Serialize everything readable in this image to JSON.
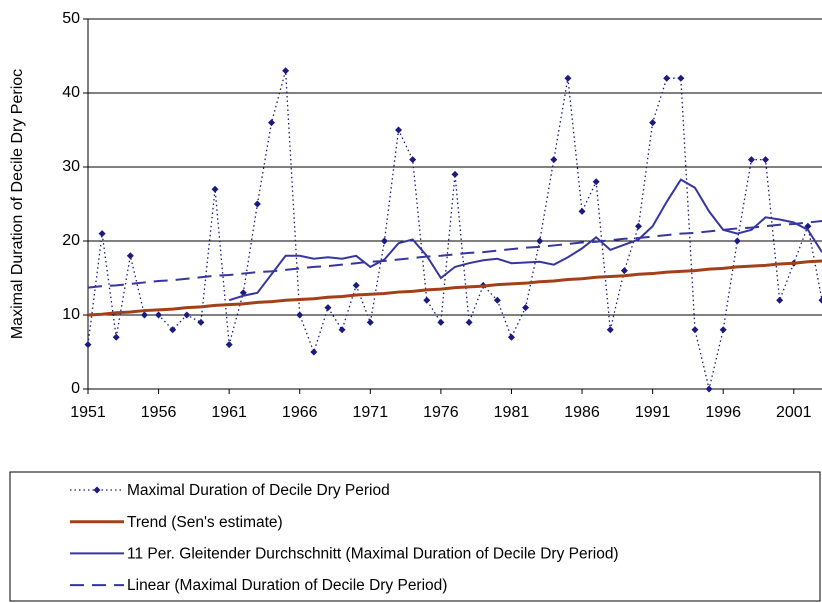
{
  "chart_data": {
    "type": "line",
    "y_label": "Maximal Duration of Decile Dry Perioc",
    "x": [
      1951,
      1952,
      1953,
      1954,
      1955,
      1956,
      1957,
      1958,
      1959,
      1960,
      1961,
      1962,
      1963,
      1964,
      1965,
      1966,
      1967,
      1968,
      1969,
      1970,
      1971,
      1972,
      1973,
      1974,
      1975,
      1976,
      1977,
      1978,
      1979,
      1980,
      1981,
      1982,
      1983,
      1984,
      1985,
      1986,
      1987,
      1988,
      1989,
      1990,
      1991,
      1992,
      1993,
      1994,
      1995,
      1996,
      1997,
      1998,
      1999,
      2000,
      2001,
      2002,
      2003
    ],
    "xlim": [
      1951,
      2003
    ],
    "xticks": [
      1951,
      1956,
      1961,
      1966,
      1971,
      1976,
      1981,
      1986,
      1991,
      1996,
      2001
    ],
    "ylim": [
      0,
      50
    ],
    "yticks": [
      0,
      10,
      20,
      30,
      40,
      50
    ],
    "grid": true,
    "legend": "bottom",
    "series": [
      {
        "name": "Maximal Duration of Decile Dry Period",
        "color": "#1a1a80",
        "line_style": "dotted",
        "marker": "diamond",
        "values": [
          6,
          21,
          7,
          18,
          10,
          10,
          8,
          10,
          9,
          27,
          6,
          13,
          25,
          36,
          43,
          10,
          5,
          11,
          8,
          14,
          9,
          20,
          35,
          31,
          12,
          9,
          29,
          9,
          14,
          12,
          7,
          11,
          20,
          31,
          42,
          24,
          28,
          8,
          16,
          22,
          36,
          42,
          42,
          8,
          0,
          8,
          20,
          31,
          31,
          12,
          17,
          22,
          12
        ]
      },
      {
        "name": "Trend (Sen's estimate)",
        "color": "#a3401a",
        "line_style": "solid",
        "width": 3,
        "values": [
          10.0,
          10.1,
          10.3,
          10.4,
          10.6,
          10.7,
          10.8,
          11.0,
          11.1,
          11.3,
          11.4,
          11.5,
          11.7,
          11.8,
          12.0,
          12.1,
          12.2,
          12.4,
          12.5,
          12.7,
          12.8,
          12.9,
          13.1,
          13.2,
          13.4,
          13.5,
          13.7,
          13.8,
          13.9,
          14.1,
          14.2,
          14.3,
          14.5,
          14.6,
          14.8,
          14.9,
          15.1,
          15.2,
          15.3,
          15.5,
          15.6,
          15.8,
          15.9,
          16.0,
          16.2,
          16.3,
          16.5,
          16.6,
          16.7,
          16.9,
          17.0,
          17.2,
          17.3
        ]
      },
      {
        "name": "11 Per. Gleitender Durchschnitt (Maximal Duration of Decile Dry Period)",
        "color": "#3636a0",
        "line_style": "solid",
        "width": 2,
        "values": [
          null,
          null,
          null,
          null,
          null,
          null,
          null,
          null,
          null,
          null,
          12,
          12.6,
          13,
          15.5,
          18,
          18,
          17.6,
          17.8,
          17.6,
          18,
          16.5,
          17.5,
          19.7,
          20.2,
          18,
          15,
          16.5,
          17,
          17.4,
          17.6,
          17,
          17.1,
          17.2,
          16.8,
          17.8,
          19,
          20.5,
          18.8,
          19.5,
          20.2,
          22,
          25.3,
          28.3,
          27.2,
          24,
          21.5,
          21,
          21.5,
          23.2,
          22.9,
          22.5,
          21.5,
          18.5
        ]
      },
      {
        "name": "Linear (Maximal Duration of Decile Dry Period)",
        "color": "#3636a0",
        "line_style": "dashed",
        "width": 2,
        "values": [
          13.7,
          13.9,
          14.0,
          14.2,
          14.4,
          14.6,
          14.7,
          14.9,
          15.1,
          15.3,
          15.4,
          15.6,
          15.8,
          15.9,
          16.1,
          16.3,
          16.5,
          16.6,
          16.8,
          17.0,
          17.2,
          17.3,
          17.5,
          17.7,
          17.9,
          18.0,
          18.2,
          18.4,
          18.5,
          18.7,
          18.9,
          19.1,
          19.2,
          19.4,
          19.6,
          19.8,
          19.9,
          20.1,
          20.3,
          20.4,
          20.6,
          20.8,
          21.0,
          21.1,
          21.3,
          21.5,
          21.7,
          21.8,
          22.0,
          22.2,
          22.3,
          22.5,
          22.7
        ]
      }
    ]
  }
}
